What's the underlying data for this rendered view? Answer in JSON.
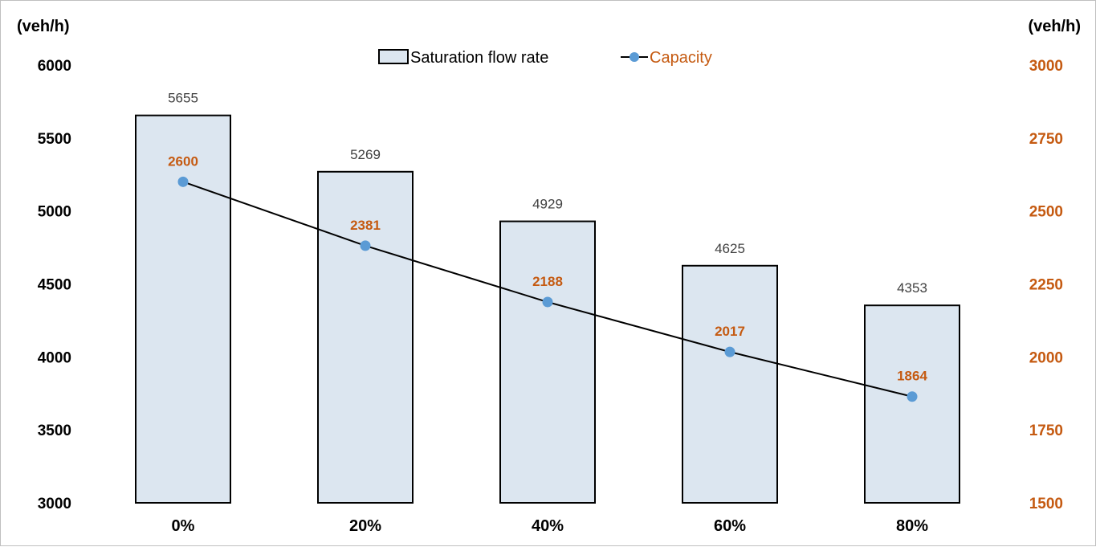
{
  "chart_data": {
    "type": "bar",
    "categories": [
      "0%",
      "20%",
      "40%",
      "60%",
      "80%"
    ],
    "series": [
      {
        "name": "Saturation flow rate",
        "type": "bar",
        "axis": "left",
        "values": [
          5655,
          5269,
          4929,
          4625,
          4353
        ],
        "color": "#dce6f0"
      },
      {
        "name": "Capacity",
        "type": "line",
        "axis": "right",
        "values": [
          2600,
          2381,
          2188,
          2017,
          1864
        ],
        "color": "#5b9bd5"
      }
    ],
    "y_left": {
      "label": "(veh/h)",
      "min": 3000,
      "max": 6000,
      "ticks": [
        "3000",
        "3500",
        "4000",
        "4500",
        "5000",
        "5500",
        "6000"
      ]
    },
    "y_right": {
      "label": "(veh/h)",
      "min": 1500,
      "max": 3000,
      "ticks": [
        "1500",
        "1750",
        "2000",
        "2250",
        "2500",
        "2750",
        "3000"
      ],
      "color": "#c55a11"
    },
    "legend_position": "top-center",
    "grid": false
  }
}
